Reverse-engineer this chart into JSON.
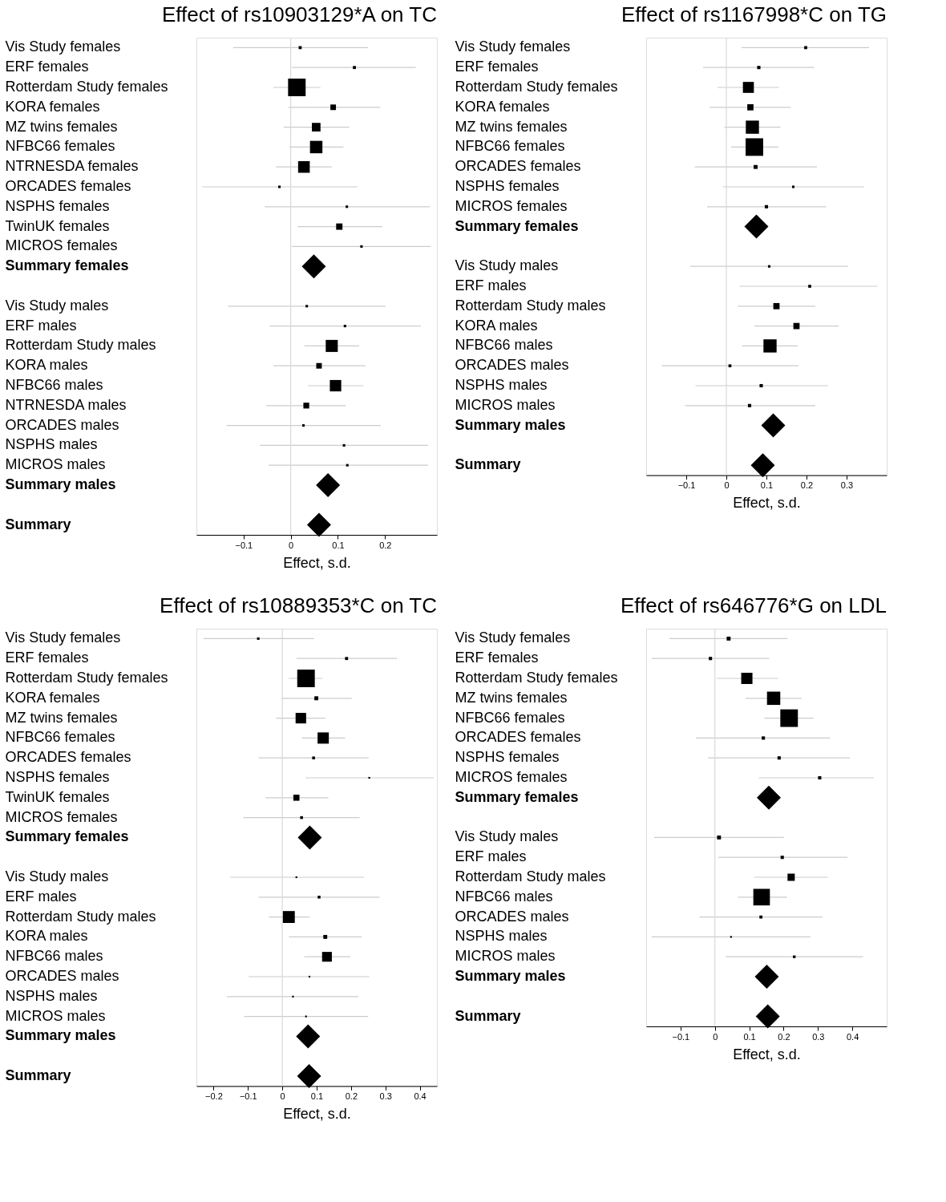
{
  "chart_data": [
    {
      "type": "scatter",
      "orientation": "horizontal",
      "title": "Effect of rs10903129*A on TC",
      "xlabel": "Effect, s.d.",
      "categories": [
        "Vis Study females",
        "ERF females",
        "Rotterdam Study females",
        "KORA females",
        "MZ twins females",
        "NFBC66 females",
        "NTRNESDA females",
        "ORCADES females",
        "NSPHS females",
        "TwinUK females",
        "MICROS females",
        "Summary females",
        null,
        "Vis Study males",
        "ERF males",
        "Rotterdam Study males",
        "KORA males",
        "NFBC66 males",
        "NTRNESDA males",
        "ORCADES males",
        "NSPHS males",
        "MICROS males",
        "Summary males",
        null,
        "Summary"
      ],
      "series": [
        {
          "type": "bubble",
          "marker": "square",
          "color": "#000000",
          "values": [
            0.02,
            0.135,
            0.013,
            0.09,
            0.054,
            0.054,
            0.028,
            -0.024,
            0.119,
            0.103,
            0.15,
            null,
            null,
            0.034,
            0.115,
            0.087,
            0.06,
            0.095,
            0.033,
            0.027,
            0.113,
            0.12,
            null,
            null,
            null
          ],
          "errors": [
            [
              -0.122,
              0.164
            ],
            [
              0.003,
              0.265
            ],
            [
              -0.037,
              0.063
            ],
            [
              -0.005,
              0.19
            ],
            [
              -0.015,
              0.124
            ],
            [
              -0.003,
              0.112
            ],
            [
              -0.031,
              0.087
            ],
            [
              -0.188,
              0.142
            ],
            [
              -0.055,
              0.295
            ],
            [
              0.015,
              0.194
            ],
            [
              0.003,
              0.297
            ],
            null,
            null,
            [
              -0.133,
              0.201
            ],
            [
              -0.045,
              0.276
            ],
            [
              0.029,
              0.145
            ],
            [
              -0.037,
              0.159
            ],
            [
              0.037,
              0.154
            ],
            [
              -0.052,
              0.117
            ],
            [
              -0.136,
              0.191
            ],
            [
              -0.065,
              0.291
            ],
            [
              -0.047,
              0.291
            ],
            null,
            null,
            null
          ],
          "sizes": [
            0.03,
            0.03,
            1,
            0.1,
            0.24,
            0.5,
            0.44,
            0.02,
            0.02,
            0.13,
            0.02,
            null,
            null,
            0.02,
            0.02,
            0.47,
            0.1,
            0.42,
            0.11,
            0.02,
            0.02,
            0.02,
            null,
            null,
            null
          ]
        },
        {
          "type": "scatter",
          "marker": "diamond",
          "color": "#000000",
          "values": [
            null,
            null,
            null,
            null,
            null,
            null,
            null,
            null,
            null,
            null,
            null,
            0.049,
            null,
            null,
            null,
            null,
            null,
            null,
            null,
            null,
            null,
            null,
            0.079,
            null,
            0.06
          ]
        }
      ],
      "xlim": [
        -0.2,
        0.31
      ],
      "xticks": [
        -0.1,
        0,
        0.1,
        0.2
      ],
      "ref_lines": [
        {
          "axis": "x",
          "value": 0,
          "color": "#d9d9d9"
        }
      ]
    },
    {
      "type": "scatter",
      "orientation": "horizontal",
      "title": "Effect of rs1167998*C on TG",
      "xlabel": "Effect, s.d.",
      "categories": [
        "Vis Study females",
        "ERF females",
        "Rotterdam Study females",
        "KORA females",
        "MZ twins females",
        "NFBC66 females",
        "ORCADES females",
        "NSPHS females",
        "MICROS females",
        "Summary females",
        null,
        "Vis Study males",
        "ERF males",
        "Rotterdam Study males",
        "KORA males",
        "NFBC66 males",
        "ORCADES males",
        "NSPHS males",
        "MICROS males",
        "Summary males",
        null,
        "Summary"
      ],
      "series": [
        {
          "type": "bubble",
          "marker": "square",
          "color": "#000000",
          "values": [
            0.198,
            0.081,
            0.055,
            0.06,
            0.065,
            0.07,
            0.073,
            0.167,
            0.1,
            null,
            null,
            0.107,
            0.208,
            0.125,
            0.175,
            0.109,
            0.009,
            0.087,
            0.058,
            null,
            null,
            null
          ],
          "errors": [
            [
              0.038,
              0.356
            ],
            [
              -0.058,
              0.219
            ],
            [
              -0.022,
              0.131
            ],
            [
              -0.042,
              0.161
            ],
            [
              -0.005,
              0.135
            ],
            [
              0.012,
              0.13
            ],
            [
              -0.079,
              0.226
            ],
            [
              -0.009,
              0.343
            ],
            [
              -0.048,
              0.249
            ],
            null,
            null,
            [
              -0.09,
              0.304
            ],
            [
              0.033,
              0.377
            ],
            [
              0.029,
              0.222
            ],
            [
              0.07,
              0.28
            ],
            [
              0.039,
              0.178
            ],
            [
              -0.161,
              0.18
            ],
            [
              -0.077,
              0.254
            ],
            [
              -0.103,
              0.222
            ],
            null,
            null,
            null
          ],
          "sizes": [
            0.03,
            0.035,
            0.39,
            0.125,
            0.56,
            1,
            0.05,
            0.02,
            0.035,
            null,
            null,
            0.02,
            0.028,
            0.125,
            0.125,
            0.56,
            0.028,
            0.035,
            0.035,
            null,
            null,
            null
          ]
        },
        {
          "type": "scatter",
          "marker": "diamond",
          "color": "#000000",
          "values": [
            null,
            null,
            null,
            null,
            null,
            null,
            null,
            null,
            null,
            0.075,
            null,
            null,
            null,
            null,
            null,
            null,
            null,
            null,
            null,
            0.117,
            null,
            0.091
          ]
        }
      ],
      "xlim": [
        -0.2,
        0.4
      ],
      "xticks": [
        -0.1,
        0,
        0.1,
        0.2,
        0.3
      ],
      "ref_lines": [
        {
          "axis": "x",
          "value": 0,
          "color": "#d9d9d9"
        }
      ]
    },
    {
      "type": "scatter",
      "orientation": "horizontal",
      "title": "Effect of rs10889353*C on TC",
      "xlabel": "Effect, s.d.",
      "categories": [
        "Vis Study females",
        "ERF females",
        "Rotterdam Study females",
        "KORA females",
        "MZ twins females",
        "NFBC66 females",
        "ORCADES females",
        "NSPHS females",
        "TwinUK females",
        "MICROS females",
        "Summary females",
        null,
        "Vis Study males",
        "ERF males",
        "Rotterdam Study males",
        "KORA males",
        "NFBC66 males",
        "ORCADES males",
        "NSPHS males",
        "MICROS males",
        "Summary males",
        null,
        "Summary"
      ],
      "series": [
        {
          "type": "bubble",
          "marker": "square",
          "color": "#000000",
          "values": [
            -0.07,
            0.187,
            0.069,
            0.099,
            0.054,
            0.119,
            0.091,
            0.253,
            0.041,
            0.056,
            null,
            null,
            0.041,
            0.107,
            0.019,
            0.125,
            0.13,
            0.079,
            0.031,
            0.069,
            null,
            null,
            null
          ],
          "errors": [
            [
              -0.23,
              0.092
            ],
            [
              0.041,
              0.334
            ],
            [
              0.019,
              0.117
            ],
            [
              -0.003,
              0.202
            ],
            [
              -0.018,
              0.125
            ],
            [
              0.057,
              0.183
            ],
            [
              -0.069,
              0.251
            ],
            [
              0.068,
              0.441
            ],
            [
              -0.049,
              0.134
            ],
            [
              -0.114,
              0.225
            ],
            null,
            null,
            [
              -0.152,
              0.238
            ],
            [
              -0.069,
              0.283
            ],
            [
              -0.039,
              0.08
            ],
            [
              0.019,
              0.231
            ],
            [
              0.064,
              0.198
            ],
            [
              -0.098,
              0.253
            ],
            [
              -0.161,
              0.221
            ],
            [
              -0.111,
              0.25
            ],
            null,
            null,
            null
          ],
          "sizes": [
            0.02,
            0.03,
            1,
            0.05,
            0.36,
            0.41,
            0.026,
            0.01,
            0.12,
            0.026,
            null,
            null,
            0.01,
            0.026,
            0.46,
            0.05,
            0.31,
            0.01,
            0.01,
            0.01,
            null,
            null,
            null
          ]
        },
        {
          "type": "scatter",
          "marker": "diamond",
          "color": "#000000",
          "values": [
            null,
            null,
            null,
            null,
            null,
            null,
            null,
            null,
            null,
            null,
            0.08,
            null,
            null,
            null,
            null,
            null,
            null,
            null,
            null,
            null,
            0.075,
            null,
            0.078
          ]
        }
      ],
      "xlim": [
        -0.25,
        0.45
      ],
      "xticks": [
        -0.2,
        -0.1,
        0,
        0.1,
        0.2,
        0.3,
        0.4
      ],
      "ref_lines": [
        {
          "axis": "x",
          "value": 0,
          "color": "#d9d9d9"
        }
      ]
    },
    {
      "type": "scatter",
      "orientation": "horizontal",
      "title": "Effect of rs646776*G on LDL",
      "xlabel": "Effect, s.d.",
      "categories": [
        "Vis Study females",
        "ERF females",
        "Rotterdam Study females",
        "MZ twins females",
        "NFBC66 females",
        "ORCADES females",
        "NSPHS females",
        "MICROS females",
        "Summary females",
        null,
        "Vis Study males",
        "ERF males",
        "Rotterdam Study males",
        "NFBC66 males",
        "ORCADES males",
        "NSPHS males",
        "MICROS males",
        "Summary males",
        null,
        "Summary"
      ],
      "series": [
        {
          "type": "bubble",
          "marker": "square",
          "color": "#000000",
          "values": [
            0.04,
            -0.013,
            0.093,
            0.171,
            0.216,
            0.141,
            0.187,
            0.305,
            null,
            null,
            0.012,
            0.196,
            0.222,
            0.136,
            0.134,
            0.047,
            0.231,
            null,
            null,
            null
          ],
          "errors": [
            [
              -0.132,
              0.211
            ],
            [
              -0.184,
              0.158
            ],
            [
              0.006,
              0.184
            ],
            [
              0.089,
              0.252
            ],
            [
              0.144,
              0.287
            ],
            [
              -0.055,
              0.335
            ],
            [
              -0.02,
              0.393
            ],
            [
              0.128,
              0.463
            ],
            null,
            null,
            [
              -0.177,
              0.201
            ],
            [
              0.01,
              0.386
            ],
            [
              0.114,
              0.328
            ],
            [
              0.067,
              0.21
            ],
            [
              -0.045,
              0.313
            ],
            [
              -0.184,
              0.278
            ],
            [
              0.032,
              0.431
            ],
            null,
            null,
            null
          ],
          "sizes": [
            0.05,
            0.035,
            0.41,
            0.57,
            1,
            0.035,
            0.035,
            0.035,
            null,
            null,
            0.05,
            0.035,
            0.17,
            0.89,
            0.03,
            0.01,
            0.023,
            null,
            null,
            null
          ]
        },
        {
          "type": "scatter",
          "marker": "diamond",
          "color": "#000000",
          "values": [
            null,
            null,
            null,
            null,
            null,
            null,
            null,
            null,
            0.157,
            null,
            null,
            null,
            null,
            null,
            null,
            null,
            null,
            0.151,
            null,
            0.154
          ]
        }
      ],
      "xlim": [
        -0.2,
        0.5
      ],
      "xticks": [
        -0.1,
        0,
        0.1,
        0.2,
        0.3,
        0.4
      ],
      "ref_lines": [
        {
          "axis": "x",
          "value": 0,
          "color": "#d9d9d9"
        }
      ]
    }
  ]
}
